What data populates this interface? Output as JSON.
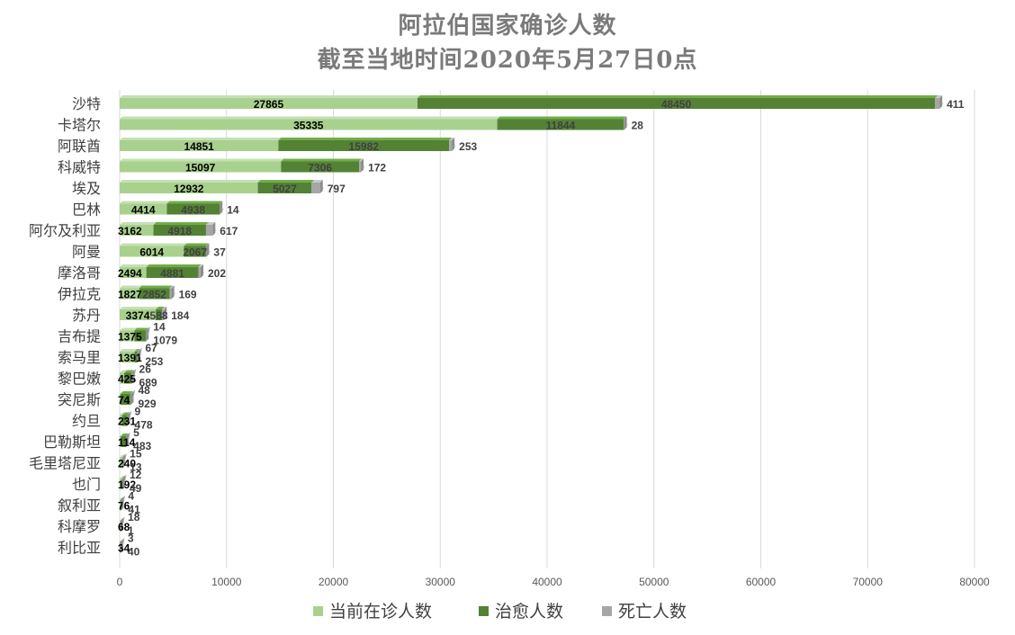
{
  "chart_data": {
    "type": "bar",
    "orientation": "horizontal",
    "stacked": true,
    "title": [
      "阿拉伯国家确诊人数",
      "截至当地时间2020年5月27日0点"
    ],
    "categories": [
      "沙特",
      "卡塔尔",
      "阿联酋",
      "科威特",
      "埃及",
      "巴林",
      "阿尔及利亚",
      "阿曼",
      "摩洛哥",
      "伊拉克",
      "苏丹",
      "吉布提",
      "索马里",
      "黎巴嫩",
      "突尼斯",
      "约旦",
      "巴勒斯坦",
      "毛里塔尼亚",
      "也门",
      "叙利亚",
      "科摩罗",
      "利比亚"
    ],
    "series": [
      {
        "name": "当前在诊人数",
        "color": "#a9d18e",
        "values": [
          27865,
          35335,
          14851,
          15097,
          12932,
          4414,
          3162,
          6014,
          2494,
          1827,
          3374,
          1375,
          1391,
          425,
          74,
          231,
          114,
          240,
          192,
          76,
          68,
          34
        ]
      },
      {
        "name": "治愈人数",
        "color": "#548235",
        "values": [
          48450,
          11844,
          15982,
          7306,
          5027,
          4938,
          4918,
          2067,
          4881,
          2852,
          588,
          1079,
          253,
          689,
          929,
          478,
          483,
          13,
          49,
          41,
          1,
          40
        ]
      },
      {
        "name": "死亡人数",
        "color": "#a6a6a6",
        "values": [
          411,
          28,
          253,
          172,
          797,
          14,
          617,
          37,
          202,
          169,
          184,
          14,
          67,
          26,
          48,
          9,
          5,
          15,
          12,
          4,
          18,
          3
        ]
      }
    ],
    "xlim": [
      0,
      80000
    ],
    "xticks": [
      "0",
      "10000",
      "20000",
      "30000",
      "40000",
      "50000",
      "60000",
      "70000",
      "80000"
    ],
    "grid": true,
    "legend_position": "bottom"
  }
}
